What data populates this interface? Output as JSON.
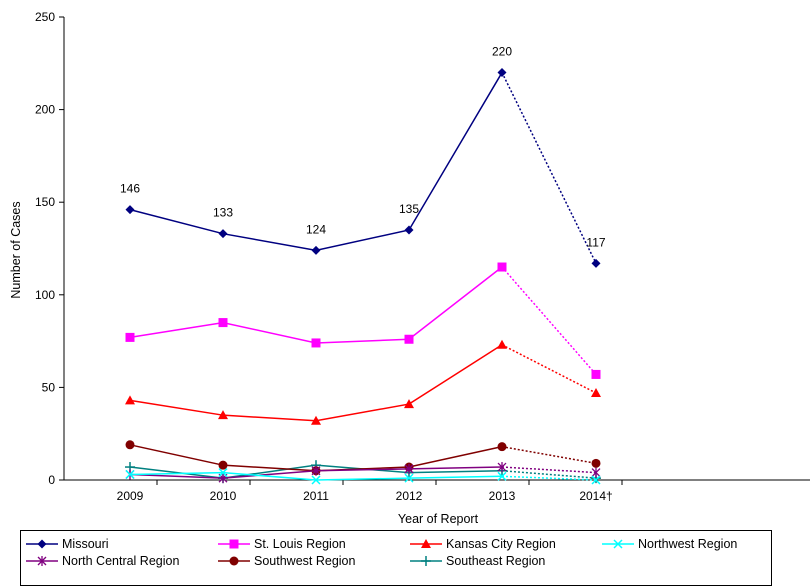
{
  "chart_data": {
    "type": "line",
    "title": "",
    "xlabel": "Year of Report",
    "ylabel": "Number of Cases",
    "categories": [
      "2009",
      "2010",
      "2011",
      "2012",
      "2013",
      "2014†"
    ],
    "ylim": [
      0,
      250
    ],
    "yticks": [
      0,
      50,
      100,
      150,
      200,
      250
    ],
    "grid": false,
    "legend": "bottom",
    "dotted_last_segment": true,
    "series": [
      {
        "name": "Missouri",
        "color": "#000080",
        "marker": "diamond",
        "values": [
          146,
          133,
          124,
          135,
          220,
          117
        ],
        "labels": [
          "146",
          "133",
          "124",
          "135",
          "220",
          "117"
        ]
      },
      {
        "name": "St. Louis Region",
        "color": "#FF00FF",
        "marker": "square",
        "values": [
          77,
          85,
          74,
          76,
          115,
          57
        ]
      },
      {
        "name": "Kansas City Region",
        "color": "#FF0000",
        "marker": "triangle",
        "values": [
          43,
          35,
          32,
          41,
          73,
          47
        ]
      },
      {
        "name": "Northwest Region",
        "color": "#00FFFF",
        "marker": "x",
        "values": [
          3,
          4,
          0,
          1,
          2,
          0
        ]
      },
      {
        "name": "North Central Region",
        "color": "#800080",
        "marker": "star",
        "values": [
          3,
          1,
          5,
          6,
          7,
          4
        ]
      },
      {
        "name": "Southwest Region",
        "color": "#800000",
        "marker": "circle",
        "values": [
          19,
          8,
          5,
          7,
          18,
          9
        ]
      },
      {
        "name": "Southeast Region",
        "color": "#008080",
        "marker": "plus",
        "values": [
          7,
          1,
          8,
          4,
          5,
          1
        ]
      }
    ]
  }
}
